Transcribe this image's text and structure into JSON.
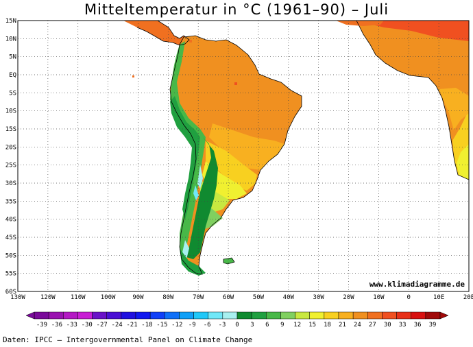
{
  "title": "Mitteltemperatur in °C (1961–90) – Juli",
  "credit": "www.klimadiagramme.de",
  "source": "Daten: IPCC – Intergovernmental Panel on Climate Change",
  "map": {
    "region": "South America",
    "lon_range": [
      -130,
      20
    ],
    "lat_range": [
      -60,
      15
    ],
    "lat_labels": [
      "15N",
      "10N",
      "5N",
      "EQ",
      "5S",
      "10S",
      "15S",
      "20S",
      "25S",
      "30S",
      "35S",
      "40S",
      "45S",
      "50S",
      "55S",
      "60S"
    ],
    "lon_labels": [
      "130W",
      "120W",
      "110W",
      "100W",
      "90W",
      "80W",
      "70W",
      "60W",
      "50W",
      "40W",
      "30W",
      "20W",
      "10W",
      "0",
      "10E",
      "20E"
    ],
    "grid": "dotted"
  },
  "legend": {
    "unit": "°C",
    "labels": [
      "-39",
      "-36",
      "-33",
      "-30",
      "-27",
      "-24",
      "-21",
      "-18",
      "-15",
      "-12",
      "-9",
      "-6",
      "-3",
      "0",
      "3",
      "6",
      "9",
      "12",
      "15",
      "18",
      "21",
      "24",
      "27",
      "30",
      "33",
      "36",
      "39"
    ],
    "colors": [
      "#7a0a9a",
      "#9a12b0",
      "#b418c4",
      "#c81ed4",
      "#6a12c8",
      "#4a10d4",
      "#2010e0",
      "#1018f0",
      "#1040f8",
      "#1070f8",
      "#10a0f8",
      "#20c8f8",
      "#70e8f8",
      "#a8f0f0",
      "#108a30",
      "#20a040",
      "#48b848",
      "#80d060",
      "#c8e840",
      "#f0f030",
      "#f8d020",
      "#f8b020",
      "#f09020",
      "#f07020",
      "#f05020",
      "#e83018",
      "#d81010",
      "#a00808"
    ]
  }
}
